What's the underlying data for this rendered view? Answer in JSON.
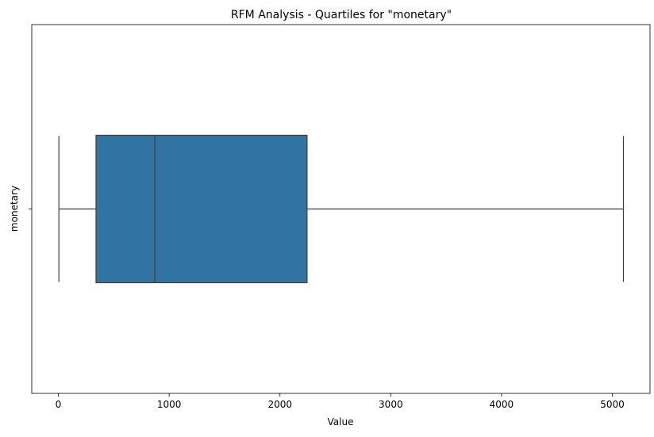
{
  "chart_data": {
    "type": "box",
    "title": "RFM Analysis - Quartiles for \"monetary\"",
    "xlabel": "Value",
    "ylabel": "monetary",
    "categories": [
      "monetary"
    ],
    "xlim": [
      -240,
      5340
    ],
    "xticks": [
      0,
      1000,
      2000,
      3000,
      4000,
      5000
    ],
    "xtick_labels": [
      "0",
      "1000",
      "2000",
      "3000",
      "4000",
      "5000"
    ],
    "grid": false,
    "box": {
      "whisker_low": 5,
      "q1": 340,
      "median": 870,
      "q3": 2245,
      "whisker_high": 5100
    },
    "colors": {
      "box_fill": "#3274a1",
      "line": "#3f3f3f",
      "axes": "#000000"
    }
  }
}
